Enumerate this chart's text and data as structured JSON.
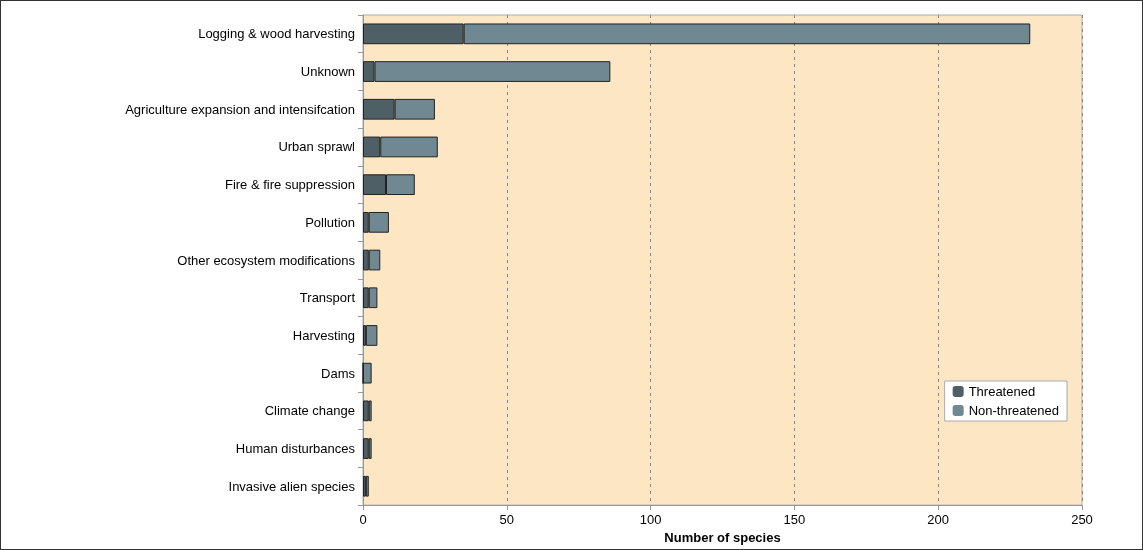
{
  "chart_data": {
    "type": "bar",
    "orientation": "horizontal",
    "stacked": true,
    "xlabel": "Number of species",
    "categories": [
      "Logging & wood harvesting",
      "Unknown",
      "Agriculture expansion and intensifcation",
      "Urban sprawl",
      "Fire & fire suppression",
      "Pollution",
      "Other ecosystem modifications",
      "Transport",
      "Harvesting",
      "Dams",
      "Climate change",
      "Human disturbances",
      "Invasive alien species"
    ],
    "series": [
      {
        "name": "Threatened",
        "color": "#4f5f66",
        "values": [
          35,
          4,
          11,
          6,
          8,
          2,
          2,
          2,
          1,
          0,
          2,
          2,
          1
        ]
      },
      {
        "name": "Non-threatened",
        "color": "#6f8891",
        "values": [
          197,
          82,
          14,
          20,
          10,
          7,
          4,
          3,
          4,
          3,
          1,
          1,
          1
        ]
      }
    ],
    "xlim": [
      0,
      250
    ],
    "xticks": [
      0,
      50,
      100,
      150,
      200,
      250
    ],
    "grid": "x",
    "legend": "bottom right"
  }
}
